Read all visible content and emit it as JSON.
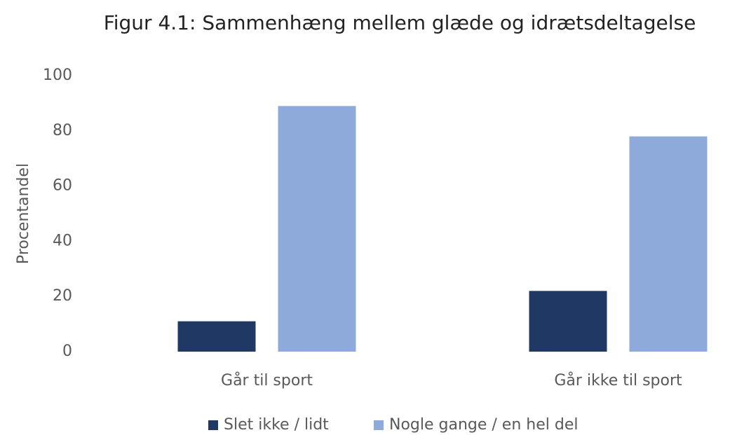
{
  "chart_data": {
    "type": "bar",
    "title": "Figur 4.1: Sammenhæng mellem glæde og idrætsdeltagelse",
    "y_label": "Procentandel",
    "categories": [
      "Går til sport",
      "Går ikke til sport"
    ],
    "series": [
      {
        "name": "Slet ikke / lidt",
        "color": "#203864",
        "values": [
          11,
          22
        ]
      },
      {
        "name": "Nogle gange / en hel del",
        "color": "#8eaadb",
        "values": [
          89,
          78
        ]
      }
    ],
    "ylim": [
      0,
      100
    ],
    "yticks": [
      0,
      20,
      40,
      60,
      80,
      100
    ],
    "grid": false,
    "legend": "bottom"
  }
}
